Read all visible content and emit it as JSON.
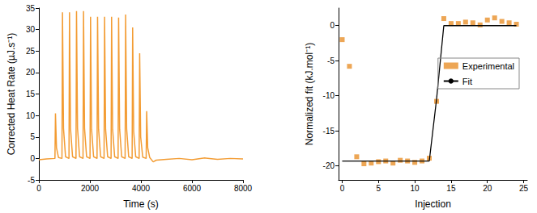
{
  "chart_data": [
    {
      "type": "line",
      "xlabel": "Time (s)",
      "ylabel": "Corrected Heat Rate (µJ.s⁻¹)",
      "color": "#f39c33",
      "x": [
        0,
        300,
        630,
        650,
        690,
        770,
        905,
        925,
        965,
        1045,
        1180,
        1200,
        1240,
        1320,
        1455,
        1475,
        1515,
        1595,
        1730,
        1750,
        1790,
        1870,
        2005,
        2025,
        2065,
        2145,
        2280,
        2300,
        2340,
        2420,
        2555,
        2575,
        2615,
        2695,
        2830,
        2850,
        2890,
        2970,
        3105,
        3125,
        3165,
        3245,
        3380,
        3400,
        3440,
        3520,
        3655,
        3675,
        3715,
        3795,
        3930,
        3950,
        3990,
        4070,
        4205,
        4225,
        4265,
        4345,
        4480,
        4600,
        5000,
        5500,
        6000,
        6500,
        7000,
        7500,
        8000
      ],
      "values": [
        -0.3,
        -0.1,
        0,
        10.5,
        2.5,
        0.2,
        0,
        34,
        7,
        0.4,
        0,
        34,
        7,
        0.4,
        0,
        34.3,
        7,
        0.4,
        0,
        34.3,
        7,
        0.4,
        0,
        33,
        6.8,
        0.4,
        0,
        33,
        6.8,
        0.4,
        0,
        33,
        6.8,
        0.4,
        0,
        33,
        6.8,
        0.4,
        0,
        32.8,
        6.8,
        0.4,
        0,
        33.5,
        6.9,
        0.4,
        0,
        30.5,
        6.3,
        0.4,
        0,
        24.5,
        5,
        0.3,
        0,
        11,
        2.5,
        0.2,
        -0.8,
        -0.4,
        -0.2,
        0,
        -0.3,
        0.1,
        -0.2,
        0,
        -0.1
      ],
      "xlim": [
        0,
        8000
      ],
      "xticks": [
        0,
        2000,
        4000,
        6000,
        8000
      ],
      "ylim": [
        -5,
        35
      ],
      "yticks": [
        -5,
        0,
        5,
        10,
        15,
        20,
        25,
        30,
        35
      ],
      "grid": false
    },
    {
      "type": "scatter",
      "xlabel": "Injection",
      "ylabel": "Normalized fit (kJ.mol⁻¹)",
      "x": [
        0,
        1,
        2,
        3,
        4,
        5,
        6,
        7,
        8,
        9,
        10,
        11,
        12,
        13,
        14,
        15,
        16,
        17,
        18,
        19,
        20,
        21,
        22,
        23,
        24
      ],
      "series": [
        {
          "name": "Experimental",
          "type": "scatter",
          "marker": "square",
          "color": "#e8902a",
          "values": [
            -2,
            -5.8,
            -18.7,
            -19.7,
            -19.6,
            -19.4,
            -19.3,
            -19.6,
            -19.2,
            -19.3,
            -19.5,
            -19.3,
            -18.9,
            -10.8,
            1.0,
            0.3,
            0.3,
            0.5,
            0.4,
            0.1,
            0.8,
            1.1,
            0.6,
            0.4,
            0.2
          ]
        },
        {
          "name": "Fit",
          "type": "line",
          "line_style": "solid",
          "color": "#000000",
          "values": [
            -19.3,
            -19.3,
            -19.3,
            -19.3,
            -19.3,
            -19.3,
            -19.3,
            -19.3,
            -19.3,
            -19.3,
            -19.3,
            -19.3,
            -19.3,
            -10.5,
            0,
            0,
            0,
            0,
            0,
            0,
            0,
            0,
            0,
            0,
            0
          ]
        }
      ],
      "xlim": [
        -0.5,
        25.5
      ],
      "xticks": [
        0,
        5,
        10,
        15,
        20,
        25
      ],
      "ylim": [
        -22,
        2.5
      ],
      "yticks": [
        -20,
        -15,
        -10,
        -5,
        0
      ],
      "legend": "right",
      "grid": false
    }
  ]
}
